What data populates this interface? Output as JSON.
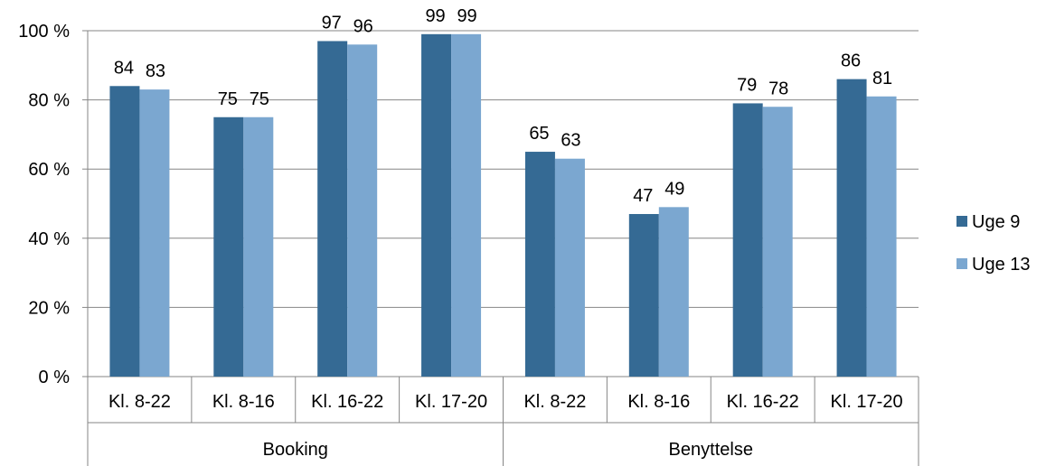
{
  "chart_data": {
    "type": "bar",
    "groups": [
      {
        "label": "Booking",
        "categories": [
          "Kl. 8-22",
          "Kl. 8-16",
          "Kl. 16-22",
          "Kl. 17-20"
        ]
      },
      {
        "label": "Benyttelse",
        "categories": [
          "Kl. 8-22",
          "Kl. 8-16",
          "Kl. 16-22",
          "Kl. 17-20"
        ]
      }
    ],
    "categories": [
      "Kl. 8-22",
      "Kl. 8-16",
      "Kl. 16-22",
      "Kl. 17-20",
      "Kl. 8-22",
      "Kl. 8-16",
      "Kl. 16-22",
      "Kl. 17-20"
    ],
    "series": [
      {
        "name": "Uge 9",
        "color": "#356A94",
        "values": [
          84,
          75,
          97,
          99,
          65,
          47,
          79,
          86
        ]
      },
      {
        "name": "Uge 13",
        "color": "#7BA7D0",
        "values": [
          83,
          75,
          96,
          99,
          63,
          49,
          78,
          81
        ]
      }
    ],
    "ylim": [
      0,
      100
    ],
    "yticks": [
      0,
      20,
      40,
      60,
      80,
      100
    ],
    "ytick_labels": [
      "0 %",
      "20 %",
      "40 %",
      "60 %",
      "80 %",
      "100 %"
    ],
    "grid": true,
    "legend_position": "right",
    "data_labels": true
  }
}
